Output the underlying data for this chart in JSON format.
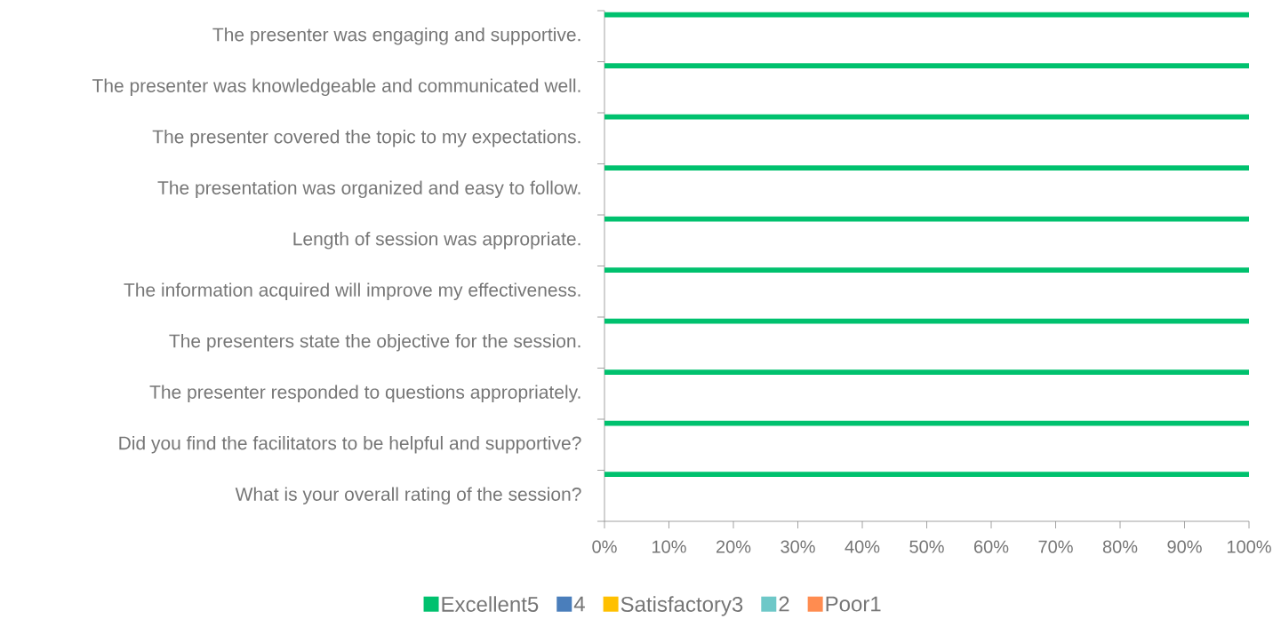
{
  "chart_data": {
    "type": "bar",
    "orientation": "horizontal",
    "legend": "bottom",
    "categories": [
      "The presenter was engaging and supportive.",
      "The presenter was knowledgeable and communicated well.",
      "The presenter covered the topic to my expectations.",
      "The presentation was organized and easy to follow.",
      "Length of session was appropriate.",
      "The information acquired will improve my effectiveness.",
      "The presenters state the objective for the session.",
      "The presenter responded to questions appropriately.",
      "Did you find the facilitators to be helpful and supportive?",
      "What is your overall rating of the session?"
    ],
    "series": [
      {
        "name": "Excellent5",
        "color": "#00c16e",
        "values": [
          100,
          100,
          100,
          100,
          100,
          100,
          100,
          100,
          100,
          100
        ]
      },
      {
        "name": "4",
        "color": "#4a7ebb",
        "values": [
          0,
          0,
          0,
          0,
          0,
          0,
          0,
          0,
          0,
          0
        ]
      },
      {
        "name": "Satisfactory3",
        "color": "#ffc000",
        "values": [
          0,
          0,
          0,
          0,
          0,
          0,
          0,
          0,
          0,
          0
        ]
      },
      {
        "name": "2",
        "color": "#6ec8c8",
        "values": [
          0,
          0,
          0,
          0,
          0,
          0,
          0,
          0,
          0,
          0
        ]
      },
      {
        "name": "Poor1",
        "color": "#ff8c50",
        "values": [
          0,
          0,
          0,
          0,
          0,
          0,
          0,
          0,
          0,
          0
        ]
      }
    ],
    "xlim": [
      0,
      100
    ],
    "xticks": [
      {
        "value": 0,
        "label": "0%"
      },
      {
        "value": 10,
        "label": "10%"
      },
      {
        "value": 20,
        "label": "20%"
      },
      {
        "value": 30,
        "label": "30%"
      },
      {
        "value": 40,
        "label": "40%"
      },
      {
        "value": 50,
        "label": "50%"
      },
      {
        "value": 60,
        "label": "60%"
      },
      {
        "value": 70,
        "label": "70%"
      },
      {
        "value": 80,
        "label": "80%"
      },
      {
        "value": 90,
        "label": "90%"
      },
      {
        "value": 100,
        "label": "100%"
      }
    ]
  }
}
